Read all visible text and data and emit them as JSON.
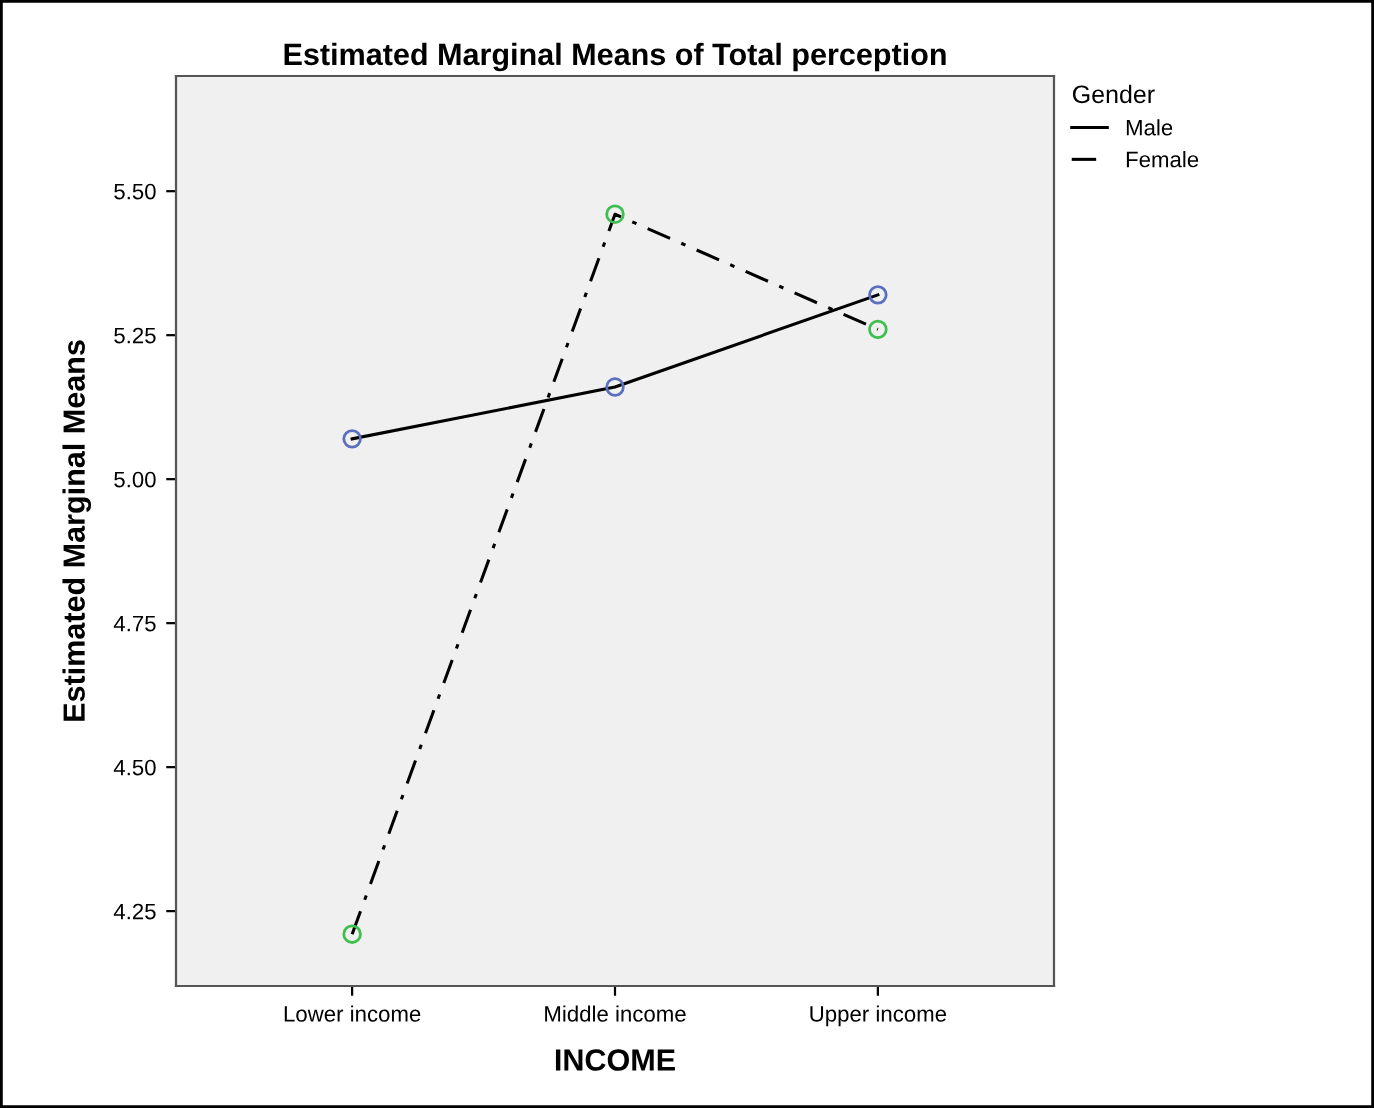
{
  "chart_data": {
    "type": "line",
    "title": "Estimated Marginal Means of Total perception",
    "xlabel": "INCOME",
    "ylabel": "Estimated Marginal Means",
    "legend_title": "Gender",
    "categories": [
      "Lower income",
      "Middle income",
      "Upper income"
    ],
    "series": [
      {
        "name": "Male",
        "color": "#5b6fbf",
        "values": [
          5.07,
          5.16,
          5.32
        ],
        "line_style": "solid"
      },
      {
        "name": "Female",
        "color": "#3fbf50",
        "values": [
          4.21,
          5.46,
          5.26
        ],
        "line_style": "dashdot"
      }
    ],
    "ylim": [
      4.12,
      5.7
    ],
    "yticks": [
      {
        "value": 4.25,
        "label": "4.25"
      },
      {
        "value": 4.5,
        "label": "4.50"
      },
      {
        "value": 4.75,
        "label": "4.75"
      },
      {
        "value": 5.0,
        "label": "5.00"
      },
      {
        "value": 5.25,
        "label": "5.25"
      },
      {
        "value": 5.5,
        "label": "5.50"
      }
    ],
    "marker": "circle",
    "grid": false,
    "legend": "top right"
  }
}
